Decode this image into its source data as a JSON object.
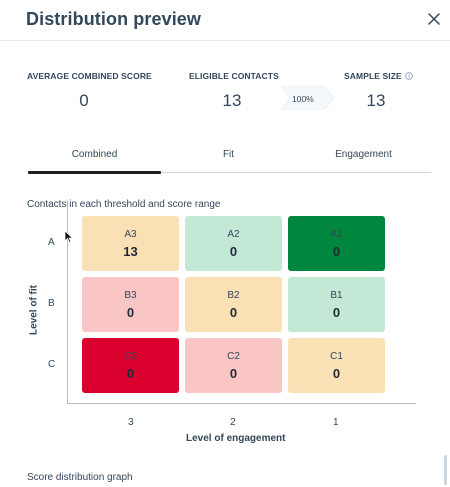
{
  "header": {
    "title": "Distribution preview",
    "close_icon": "close-icon"
  },
  "stats": {
    "average_combined_score": {
      "label": "AVERAGE COMBINED SCORE",
      "value": "0"
    },
    "eligible_contacts": {
      "label": "ELIGIBLE CONTACTS",
      "value": "13"
    },
    "percent_badge": "100%",
    "sample_size": {
      "label": "SAMPLE SIZE",
      "value": "13",
      "info_icon": "info-icon"
    }
  },
  "tabs": [
    {
      "label": "Combined",
      "active": true
    },
    {
      "label": "Fit",
      "active": false
    },
    {
      "label": "Engagement",
      "active": false
    }
  ],
  "matrix": {
    "caption": "Contacts in each threshold and score range",
    "y_axis_title": "Level of fit",
    "x_axis_title": "Level of engagement",
    "row_labels": [
      "A",
      "B",
      "C"
    ],
    "col_labels": [
      "3",
      "2",
      "1"
    ],
    "cells": [
      {
        "name": "A3",
        "count": "13",
        "color": "#fae0b5"
      },
      {
        "name": "A2",
        "count": "0",
        "color": "#c3e8d5"
      },
      {
        "name": "A1",
        "count": "0",
        "color": "#00873e"
      },
      {
        "name": "B3",
        "count": "0",
        "color": "#fac5c5"
      },
      {
        "name": "B2",
        "count": "0",
        "color": "#fae0b5"
      },
      {
        "name": "B1",
        "count": "0",
        "color": "#c3e8d5"
      },
      {
        "name": "C3",
        "count": "0",
        "color": "#d9002e"
      },
      {
        "name": "C2",
        "count": "0",
        "color": "#fac5c5"
      },
      {
        "name": "C1",
        "count": "0",
        "color": "#fae0b5"
      }
    ]
  },
  "footer": {
    "section_title": "Score distribution graph"
  },
  "colors": {
    "text": "#33475b",
    "tab_active": "#1d2125",
    "dark_green": "#00873e",
    "dark_red": "#d9002e"
  }
}
